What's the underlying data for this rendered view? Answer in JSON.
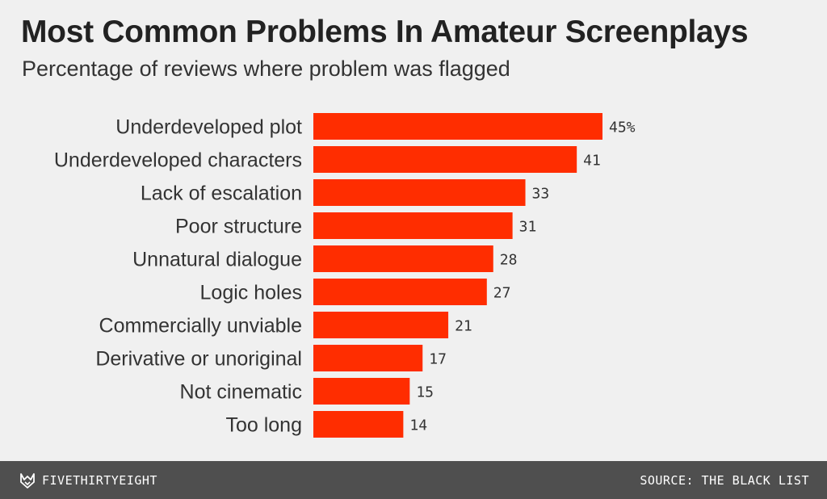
{
  "header": {
    "title": "Most Common Problems In Amateur Screenplays",
    "subtitle": "Percentage of reviews where problem was flagged"
  },
  "chart_data": {
    "type": "bar",
    "orientation": "horizontal",
    "title": "Most Common Problems In Amateur Screenplays",
    "subtitle": "Percentage of reviews where problem was flagged",
    "categories": [
      "Underdeveloped plot",
      "Underdeveloped characters",
      "Lack of escalation",
      "Poor structure",
      "Unnatural dialogue",
      "Logic holes",
      "Commercially unviable",
      "Derivative or unoriginal",
      "Not cinematic",
      "Too long"
    ],
    "values": [
      45,
      41,
      33,
      31,
      28,
      27,
      21,
      17,
      15,
      14
    ],
    "data_labels": [
      "45%",
      "41",
      "33",
      "31",
      "28",
      "27",
      "21",
      "17",
      "15",
      "14"
    ],
    "xlim": [
      0,
      45
    ],
    "bar_color": "#ff2d00",
    "grid": false,
    "legend": "none"
  },
  "footer": {
    "brand": "FIVETHIRTYEIGHT",
    "brand_icon": "fivethirtyeight-fox-icon",
    "source": "SOURCE: THE BLACK LIST"
  }
}
